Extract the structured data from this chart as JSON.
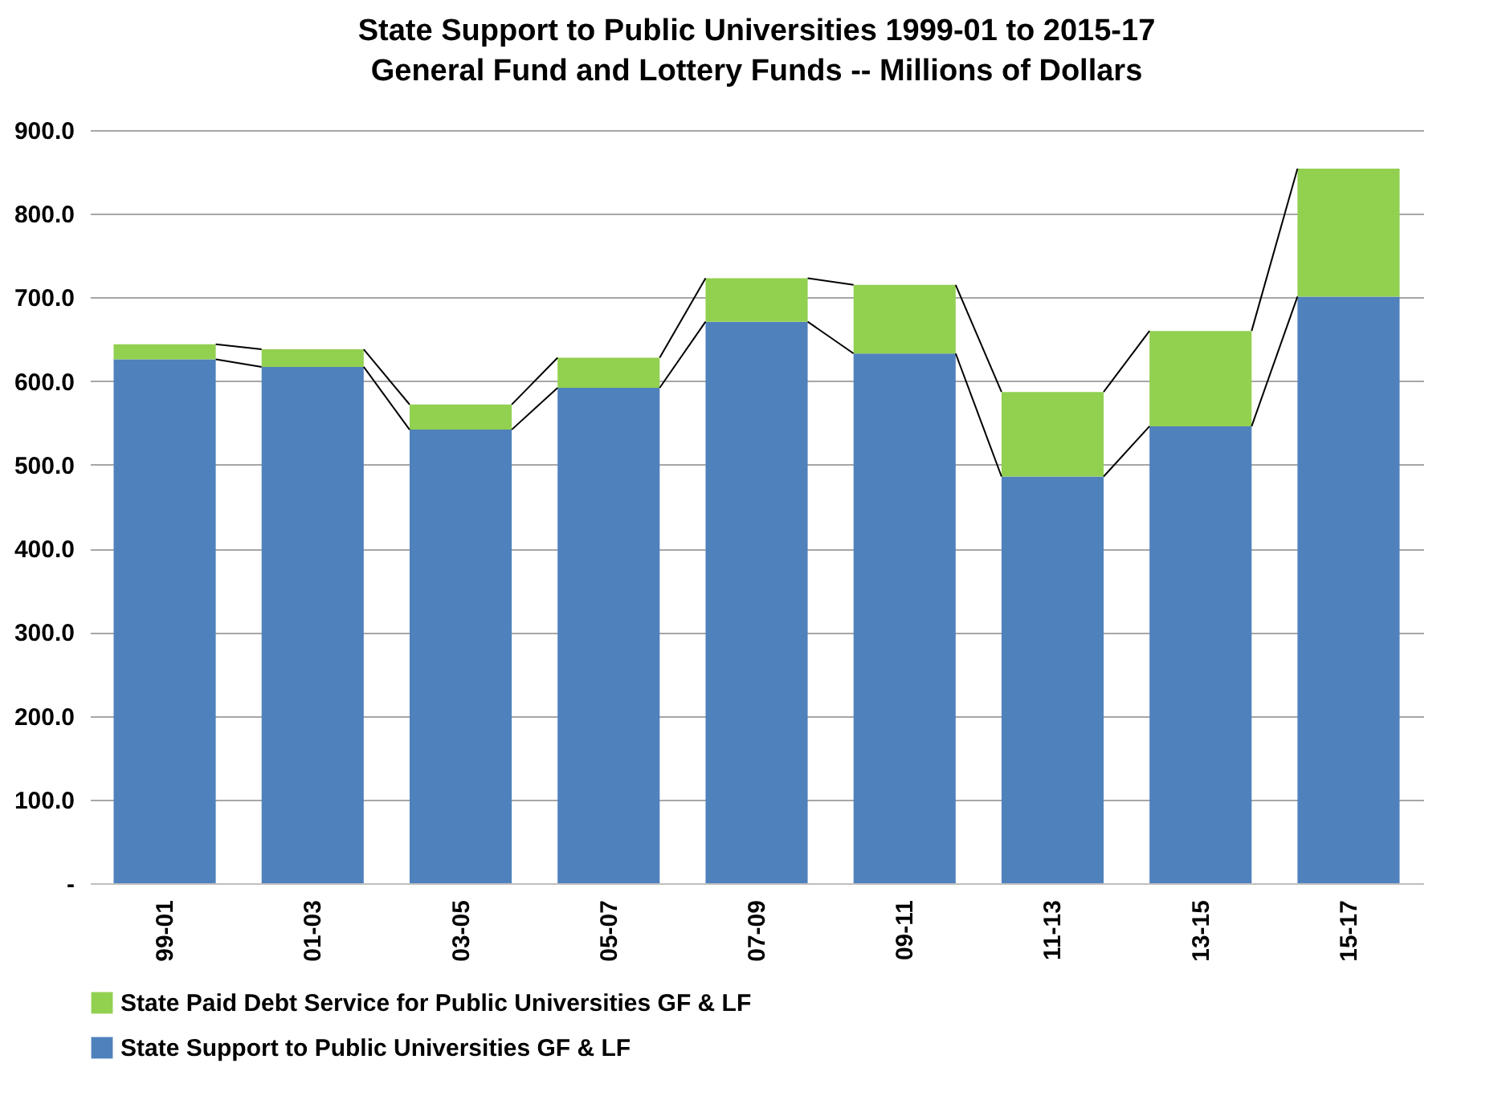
{
  "chart_data": {
    "type": "bar",
    "stacked": true,
    "title": "State Support to Public Universities 1999-01 to 2015-17",
    "subtitle": "General Fund and Lottery Funds -- Millions of Dollars",
    "categories": [
      "99-01",
      "01-03",
      "03-05",
      "05-07",
      "07-09",
      "09-11",
      "11-13",
      "13-15",
      "15-17"
    ],
    "series": [
      {
        "name": "State Support to Public Universities GF & LF",
        "color": "#4f81bd",
        "values": [
          626,
          617,
          542,
          592,
          671,
          633,
          486,
          546,
          701
        ]
      },
      {
        "name": "State Paid Debt Service for Public Universities GF & LF",
        "color": "#92d050",
        "values": [
          18,
          21,
          30,
          36,
          52,
          82,
          101,
          114,
          153
        ]
      }
    ],
    "ylim": [
      0,
      900
    ],
    "yticks": [
      {
        "value": 0,
        "label": "-"
      },
      {
        "value": 100,
        "label": "100.0"
      },
      {
        "value": 200,
        "label": "200.0"
      },
      {
        "value": 300,
        "label": "300.0"
      },
      {
        "value": 400,
        "label": "400.0"
      },
      {
        "value": 500,
        "label": "500.0"
      },
      {
        "value": 600,
        "label": "600.0"
      },
      {
        "value": 700,
        "label": "700.0"
      },
      {
        "value": 800,
        "label": "800.0"
      },
      {
        "value": 900,
        "label": "900.0"
      }
    ],
    "grid": "y",
    "legend": "bottom"
  }
}
